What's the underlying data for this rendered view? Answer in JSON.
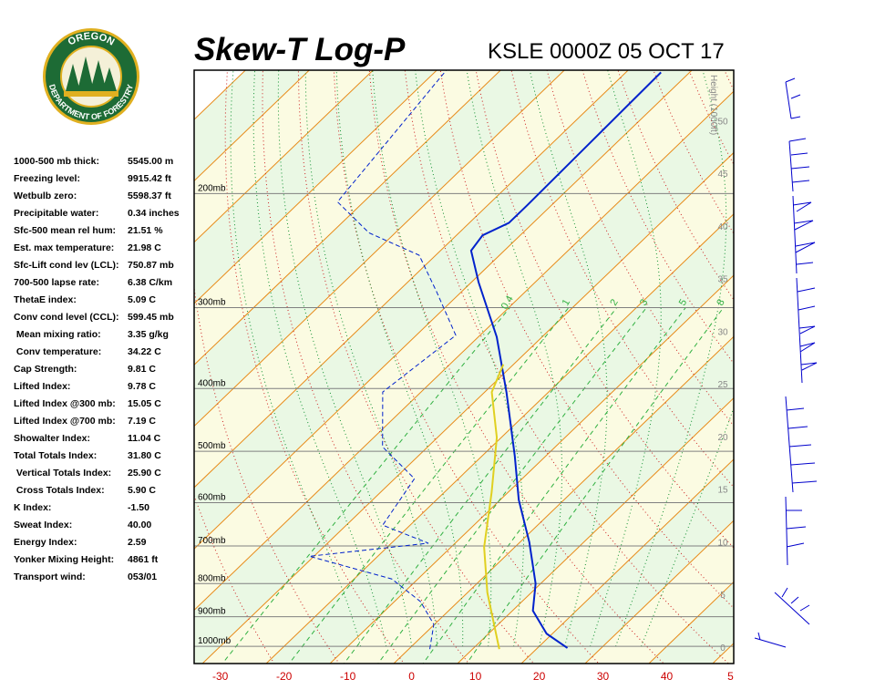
{
  "logo": {
    "top": "OREGON",
    "bottom": "DEPARTMENT OF FORESTRY"
  },
  "indices": [
    {
      "label": "1000-500 mb thick:",
      "value": "5545.00 m"
    },
    {
      "label": "Freezing level:",
      "value": "9915.42 ft"
    },
    {
      "label": "Wetbulb zero:",
      "value": "5598.37 ft"
    },
    {
      "label": "Precipitable water:",
      "value": "0.34 inches"
    },
    {
      "label": "Sfc-500 mean rel hum:",
      "value": "21.51 %"
    },
    {
      "label": "Est. max temperature:",
      "value": "21.98 C"
    },
    {
      "label": "Sfc-Lift cond lev (LCL):",
      "value": "750.87 mb"
    },
    {
      "label": "700-500 lapse rate:",
      "value": "6.38 C/km"
    },
    {
      "label": "ThetaE index:",
      "value": "5.09 C"
    },
    {
      "label": "Conv cond level (CCL):",
      "value": "599.45 mb"
    },
    {
      "label": " Mean mixing ratio:",
      "value": "3.35 g/kg"
    },
    {
      "label": " Conv temperature:",
      "value": "34.22 C"
    },
    {
      "label": "Cap Strength:",
      "value": "9.81 C"
    },
    {
      "label": "Lifted Index:",
      "value": "9.78 C"
    },
    {
      "label": "Lifted Index @300 mb:",
      "value": "15.05 C"
    },
    {
      "label": "Lifted Index @700 mb:",
      "value": "7.19 C"
    },
    {
      "label": "Showalter Index:",
      "value": "11.04 C"
    },
    {
      "label": "Total Totals Index:",
      "value": "31.80 C"
    },
    {
      "label": " Vertical Totals Index:",
      "value": "25.90 C"
    },
    {
      "label": " Cross Totals Index:",
      "value": "5.90 C"
    },
    {
      "label": "K Index:",
      "value": "-1.50"
    },
    {
      "label": "Sweat Index:",
      "value": "40.00"
    },
    {
      "label": "Energy Index:",
      "value": "2.59"
    },
    {
      "label": "Yonker Mixing Height:",
      "value": "4861 ft"
    },
    {
      "label": "Transport wind:",
      "value": "053/01"
    }
  ],
  "chart_data": {
    "type": "skewt",
    "title": "Skew-T Log-P",
    "subtitle": "KSLE 0000Z 05 OCT 17",
    "xlim": [
      -34.1,
      50.5
    ],
    "xticks": [
      -30,
      -20,
      -10,
      0,
      10,
      20,
      30,
      40,
      {
        "value": 50,
        "label": "5"
      }
    ],
    "ylim": [
      1063,
      129
    ],
    "log_y": true,
    "yticks": [
      {
        "value": 1000,
        "label": "1000mb"
      },
      {
        "value": 900,
        "label": "900mb"
      },
      {
        "value": 800,
        "label": "800mb"
      },
      {
        "value": 700,
        "label": "700mb"
      },
      {
        "value": 600,
        "label": "600mb"
      },
      {
        "value": 500,
        "label": "500mb"
      },
      {
        "value": 400,
        "label": "400mb"
      },
      {
        "value": 300,
        "label": "300mb"
      },
      {
        "value": 200,
        "label": "200mb"
      }
    ],
    "y2label": "Height (1000ft)",
    "y2lim": [
      -1.56,
      54.8
    ],
    "y2ticks": [
      0,
      5,
      10,
      15,
      20,
      25,
      30,
      35,
      40,
      45,
      50
    ],
    "mixing_ratio_labels": [
      0.4,
      1,
      2,
      3,
      5,
      8
    ],
    "series": [
      {
        "color": "#0022cc",
        "dash": false,
        "pressure": [
          1006,
          956,
          881,
          800,
          691,
          594,
          508,
          405,
          333,
          274,
          245,
          232,
          222,
          209,
          130
        ],
        "values": [
          24.7,
          19.1,
          13.2,
          9.2,
          1.5,
          -7.1,
          -14.9,
          -26.6,
          -37.1,
          -48.9,
          -55.2,
          -55.9,
          -53.8,
          -53.8,
          -54.5
        ]
      },
      {
        "color": "#0022cc",
        "dash": true,
        "pressure": [
          1010,
          925,
          853,
          787,
          726,
          693,
          650,
          551,
          492,
          405,
          331,
          284,
          249,
          230,
          206,
          129
        ],
        "values": [
          3.3,
          -0.1,
          -5.9,
          -14.1,
          -30.7,
          -14.2,
          -24.3,
          -26.9,
          -37.1,
          -46.0,
          -43.8,
          -53.8,
          -62.6,
          -74.1,
          -84.1,
          -88.5
        ]
      },
      {
        "color": "#e0d020",
        "dash": false,
        "pressure": [
          1010,
          826,
          703,
          578,
          476,
          405,
          367
        ],
        "values": [
          14.2,
          3.1,
          -4.8,
          -12.6,
          -20.7,
          -28.9,
          -31.6
        ]
      }
    ]
  }
}
